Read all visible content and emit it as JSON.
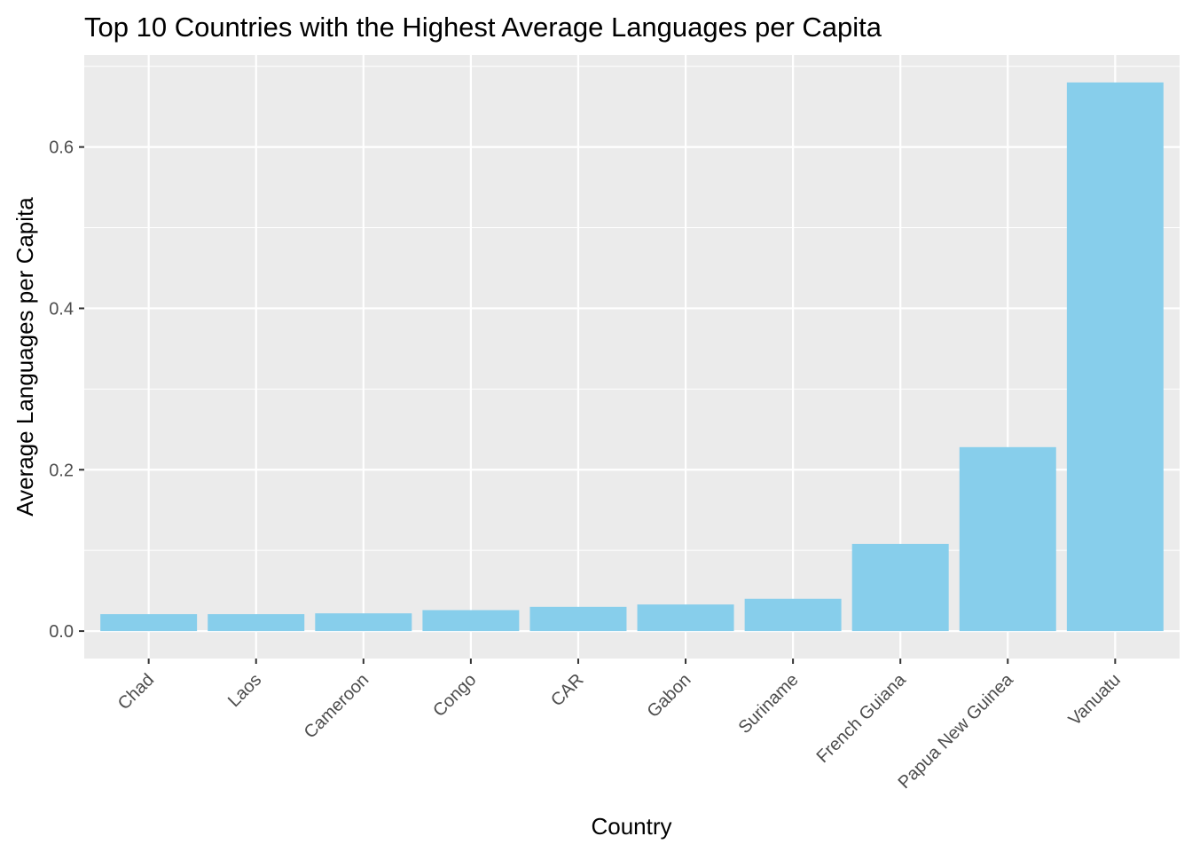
{
  "chart_data": {
    "type": "bar",
    "title": "Top 10 Countries with the Highest Average Languages per Capita",
    "xlabel": "Country",
    "ylabel": "Average Languages per Capita",
    "categories": [
      "Chad",
      "Laos",
      "Cameroon",
      "Congo",
      "CAR",
      "Gabon",
      "Suriname",
      "French Guiana",
      "Papua New Guinea",
      "Vanuatu"
    ],
    "values": [
      0.021,
      0.021,
      0.022,
      0.026,
      0.03,
      0.033,
      0.04,
      0.108,
      0.228,
      0.68
    ],
    "ylim": [
      -0.034,
      0.714
    ],
    "yticks": [
      0.0,
      0.2,
      0.4,
      0.6
    ],
    "ytick_labels": [
      "0.0",
      "0.2",
      "0.4",
      "0.6"
    ],
    "grid": true,
    "legend": "none",
    "colors": {
      "bar": "#87CEEB",
      "panel": "#EBEBEB",
      "grid": "#FFFFFF",
      "tick": "#333333"
    }
  }
}
